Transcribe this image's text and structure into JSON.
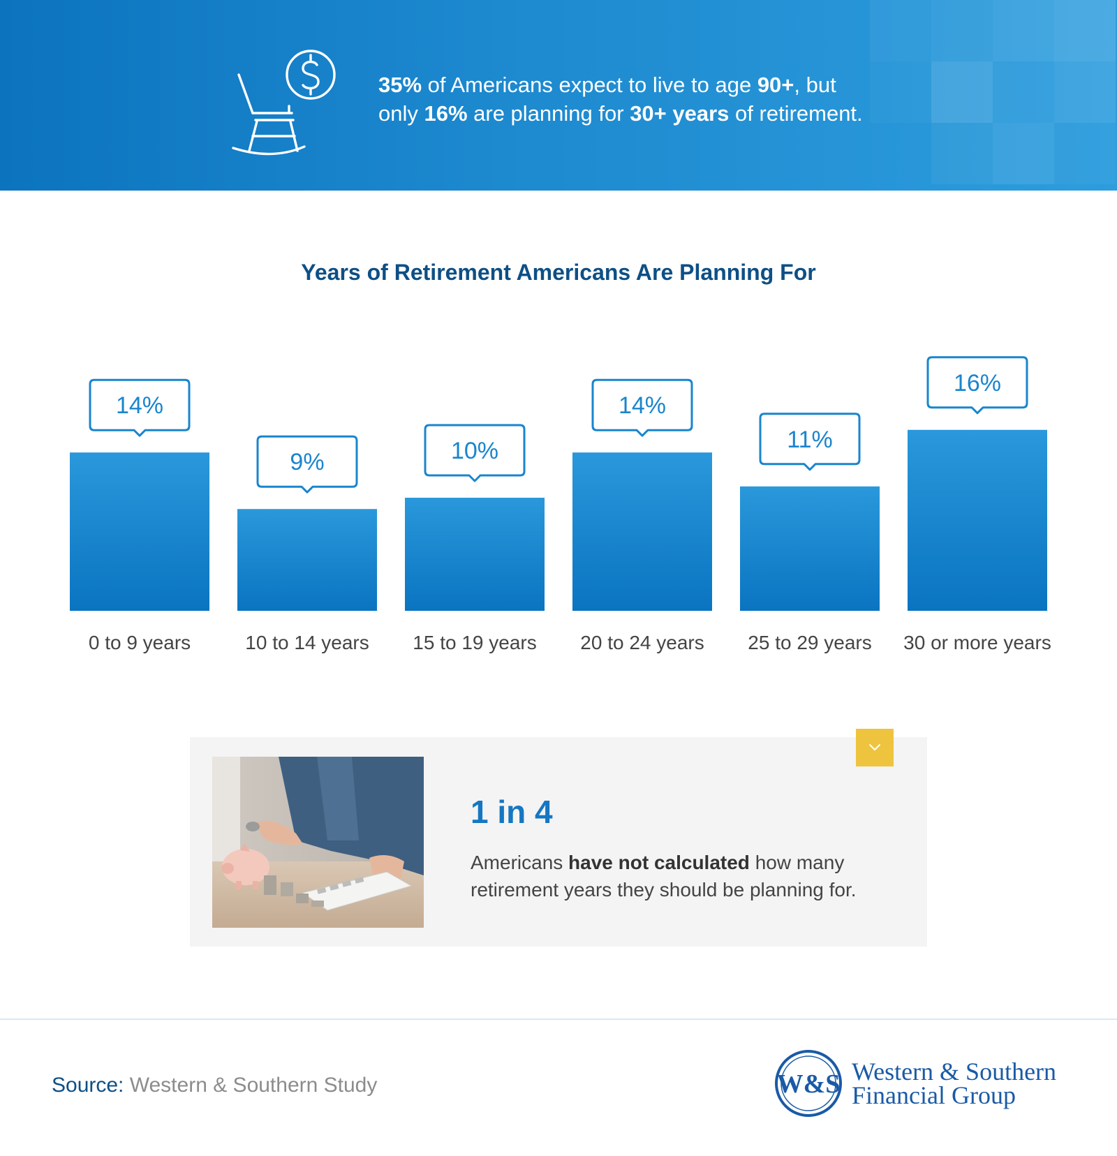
{
  "banner": {
    "stat1_value": "35%",
    "stat1_text": " of Americans expect to live to age ",
    "stat1_age": "90+",
    "stat1_tail": ", but",
    "line2_start": "only ",
    "stat2_value": "16%",
    "stat2_text": " are planning for ",
    "stat2_years": "30+ years",
    "stat2_tail": " of retirement.",
    "icon": "rocking-chair-dollar-icon",
    "background_color": "#1384c9"
  },
  "chart_data": {
    "type": "bar",
    "title": "Years of Retirement Americans Are Planning For",
    "xlabel": "",
    "ylabel": "",
    "categories": [
      "0 to 9 years",
      "10 to 14 years",
      "15 to 19 years",
      "20 to 24 years",
      "25 to 29 years",
      "30 or more years"
    ],
    "values": [
      14,
      9,
      10,
      14,
      11,
      16
    ],
    "data_labels": [
      "14%",
      "9%",
      "10%",
      "14%",
      "11%",
      "16%"
    ],
    "unit": "%",
    "bar_color": "#1a85cd",
    "grid": false
  },
  "info_card": {
    "image": "piggy-bank-calculator-photo",
    "badge_icon": "chevron-down-icon",
    "badge_color": "#eec43e",
    "big_stat": "1 in 4",
    "text_start": "Americans ",
    "text_bold": "have not calculated",
    "text_end": " how many retirement years they should be planning for."
  },
  "footer": {
    "source_label": "Source:",
    "source_value": " Western & Southern Study",
    "logo_mark": "W&S",
    "logo_line1": "Western & Southern",
    "logo_line2": "Financial Group"
  }
}
